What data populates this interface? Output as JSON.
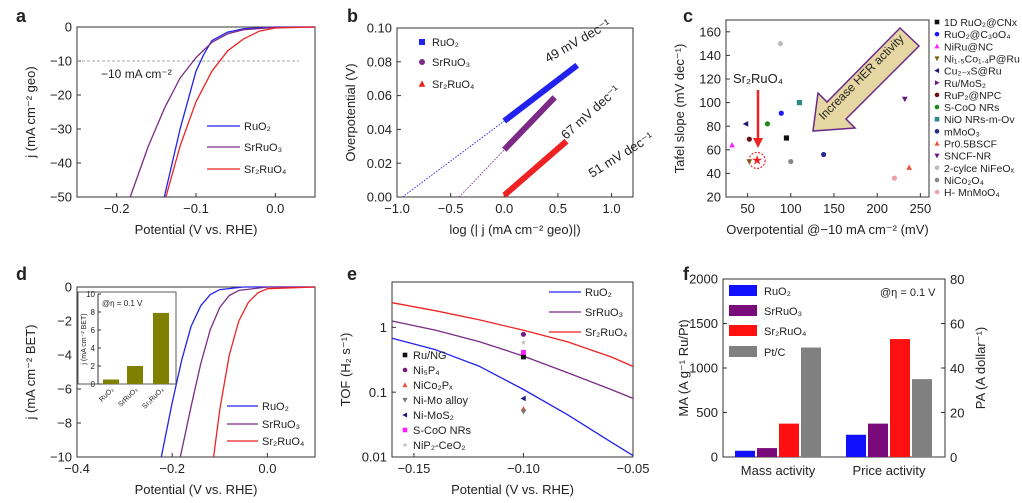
{
  "panel_labels": [
    "a",
    "b",
    "c",
    "d",
    "e",
    "f"
  ],
  "chart_data": [
    {
      "panel": "a",
      "type": "line",
      "xlabel": "Potential (V vs. RHE)",
      "ylabel": "j (mA cm⁻² geo)",
      "xlim": [
        -0.25,
        0.05
      ],
      "ylim": [
        -50,
        0
      ],
      "xticks": [
        -0.2,
        -0.1,
        0.0
      ],
      "xtick_labels": [
        "−0.2",
        "−0.1",
        "0.0"
      ],
      "yticks": [
        0,
        -10,
        -20,
        -30,
        -40,
        -50
      ],
      "ytick_labels": [
        "0",
        "−10",
        "−20",
        "−30",
        "−40",
        "−50"
      ],
      "legend": "bottom-right",
      "reference_line": {
        "y": -10,
        "label": "−10 mA cm⁻²"
      },
      "series": [
        {
          "name": "RuO₂",
          "color": "#2222ee",
          "x": [
            -0.14,
            -0.12,
            -0.1,
            -0.09,
            -0.08,
            -0.06,
            -0.04,
            0,
            0.05
          ],
          "y": [
            -50,
            -30,
            -13,
            -8,
            -4,
            -1.5,
            -0.5,
            0,
            0
          ]
        },
        {
          "name": "SrRuO₃",
          "color": "#7b2a86",
          "x": [
            -0.183,
            -0.16,
            -0.14,
            -0.12,
            -0.1,
            -0.08,
            -0.06,
            -0.04,
            0,
            0.05
          ],
          "y": [
            -50,
            -35,
            -24,
            -15,
            -9,
            -4.5,
            -2,
            -0.8,
            -0.1,
            0
          ]
        },
        {
          "name": "Sr₂RuO₄",
          "color": "#ee2222",
          "x": [
            -0.138,
            -0.12,
            -0.1,
            -0.08,
            -0.06,
            -0.04,
            -0.02,
            0,
            0.05
          ],
          "y": [
            -50,
            -35,
            -22,
            -13,
            -7,
            -3.5,
            -1.2,
            -0.3,
            0
          ]
        }
      ]
    },
    {
      "panel": "b",
      "type": "line",
      "xlabel": "log (| j (mA cm⁻² geo)|)",
      "ylabel": "Overpotential (V)",
      "xlim": [
        -1.0,
        1.2
      ],
      "ylim": [
        0,
        0.1
      ],
      "xticks": [
        -1.0,
        -0.5,
        0.0,
        0.5,
        1.0
      ],
      "xtick_labels": [
        "−1.0",
        "−0.5",
        "0.0",
        "0.5",
        "1.0"
      ],
      "yticks": [
        0,
        0.02,
        0.04,
        0.06,
        0.08,
        0.1
      ],
      "ytick_labels": [
        "0.00",
        "0.02",
        "0.04",
        "0.06",
        "0.08",
        "0.10"
      ],
      "legend": "top-left",
      "series": [
        {
          "name": "RuO₂",
          "color": "#2222ee",
          "marker": "square",
          "fit_x": [
            0,
            0.68
          ],
          "fit_y": [
            0.045,
            0.078
          ],
          "extrap_x": [
            -0.95,
            0
          ],
          "extrap_y": [
            0,
            0.045
          ],
          "slope_label": "49 mV dec⁻¹"
        },
        {
          "name": "SrRuO₃",
          "color": "#7b2a86",
          "marker": "circle",
          "fit_x": [
            0,
            0.47
          ],
          "fit_y": [
            0.028,
            0.059
          ],
          "extrap_x": [
            -0.42,
            0
          ],
          "extrap_y": [
            0,
            0.028
          ],
          "slope_label": "67 mV dec⁻¹"
        },
        {
          "name": "Sr₂RuO₄",
          "color": "#ee2222",
          "marker": "triangle-up",
          "fit_x": [
            0,
            0.58
          ],
          "fit_y": [
            0.001,
            0.033
          ],
          "extrap_x": [
            -0.03,
            0
          ],
          "extrap_y": [
            0,
            0.001
          ],
          "slope_label": "51 mV dec⁻¹"
        }
      ]
    },
    {
      "panel": "c",
      "type": "scatter",
      "xlabel": "Overpotential @−10 mA cm⁻² (mV)",
      "ylabel": "Tafel slope (mV dec⁻¹)",
      "xlim": [
        25,
        260
      ],
      "ylim": [
        20,
        170
      ],
      "xticks": [
        50,
        100,
        150,
        200,
        250
      ],
      "xtick_labels": [
        "50",
        "100",
        "150",
        "200",
        "250"
      ],
      "yticks": [
        20,
        40,
        60,
        80,
        100,
        120,
        140,
        160
      ],
      "ytick_labels": [
        "20",
        "40",
        "60",
        "80",
        "100",
        "120",
        "140",
        "160"
      ],
      "legend": "outside-right",
      "highlight": {
        "name": "Sr₂RuO₄",
        "x": 61,
        "y": 51,
        "color": "#ee2222",
        "marker": "star"
      },
      "annotation": "Increase HER activity",
      "points": [
        {
          "name": "1D RuO₂@CNx",
          "x": 95,
          "y": 70,
          "color": "#111111",
          "marker": "square"
        },
        {
          "name": "RuO₂@C₃oO₄",
          "x": 89,
          "y": 91,
          "color": "#1a1aff",
          "marker": "circle"
        },
        {
          "name": "NiRu@NC",
          "x": 32,
          "y": 64,
          "color": "#ff22ff",
          "marker": "triangle-up"
        },
        {
          "name": "Ni₁.₅Co₁.₄P@Ru",
          "x": 52,
          "y": 50,
          "color": "#6b6b10",
          "marker": "triangle-down"
        },
        {
          "name": "Cu₂₋ₓS@Ru",
          "x": 48,
          "y": 82,
          "color": "#1a1a70",
          "marker": "triangle-left"
        },
        {
          "name": "Ru/MoS₂",
          "x": null,
          "y": null,
          "color": "#6a1a80",
          "marker": "triangle-right"
        },
        {
          "name": "RuP₂@NPC",
          "x": 52,
          "y": 69,
          "color": "#6a1010",
          "marker": "circle"
        },
        {
          "name": "S-CoO NRs",
          "x": 73,
          "y": 82,
          "color": "#1a8a1a",
          "marker": "circle"
        },
        {
          "name": "NiO NRs-m-Ov",
          "x": 110,
          "y": 100,
          "color": "#2a8a8a",
          "marker": "square"
        },
        {
          "name": "mMoO₃",
          "x": 138,
          "y": 56,
          "color": "#2a2a90",
          "marker": "circle"
        },
        {
          "name": "Pr0.5BSCF",
          "x": 237,
          "y": 45,
          "color": "#ee5533",
          "marker": "triangle-up"
        },
        {
          "name": "SNCF-NR",
          "x": 232,
          "y": 103,
          "color": "#6a1a80",
          "marker": "triangle-down"
        },
        {
          "name": "2-cylce NiFeOₓ",
          "x": 88,
          "y": 150,
          "color": "#bbbbbb",
          "marker": "circle"
        },
        {
          "name": "NiCo₂O₄",
          "x": 100,
          "y": 50,
          "color": "#888888",
          "marker": "circle"
        },
        {
          "name": "H- MnMoO₄",
          "x": 220,
          "y": 36,
          "color": "#f0a0a8",
          "marker": "circle"
        }
      ]
    },
    {
      "panel": "d",
      "type": "line",
      "xlabel": "Potential (V vs. RHE)",
      "ylabel": "j (mA cm⁻² BET)",
      "xlim": [
        -0.4,
        0.1
      ],
      "ylim": [
        -10,
        0
      ],
      "xticks": [
        -0.4,
        -0.2,
        0.0
      ],
      "xtick_labels": [
        "−0.4",
        "−0.2",
        "0.0"
      ],
      "yticks": [
        0,
        -2,
        -4,
        -6,
        -8,
        -10
      ],
      "ytick_labels": [
        "0",
        "−2",
        "−4",
        "−6",
        "−8",
        "−10"
      ],
      "legend": "bottom-right",
      "series": [
        {
          "name": "RuO₂",
          "color": "#2222ee",
          "x": [
            -0.223,
            -0.2,
            -0.18,
            -0.16,
            -0.14,
            -0.12,
            -0.1,
            -0.05,
            0.1
          ],
          "y": [
            -10,
            -6.8,
            -4.3,
            -2.3,
            -1.1,
            -0.45,
            -0.15,
            0,
            0
          ]
        },
        {
          "name": "SrRuO₃",
          "color": "#7b2a86",
          "x": [
            -0.183,
            -0.16,
            -0.14,
            -0.12,
            -0.1,
            -0.08,
            -0.06,
            0,
            0.1
          ],
          "y": [
            -10,
            -7,
            -4.5,
            -2.5,
            -1.2,
            -0.5,
            -0.2,
            0,
            0
          ]
        },
        {
          "name": "Sr₂RuO₄",
          "color": "#ee2222",
          "x": [
            -0.113,
            -0.1,
            -0.08,
            -0.06,
            -0.04,
            -0.02,
            0,
            0.1
          ],
          "y": [
            -10,
            -7.2,
            -4,
            -2,
            -0.9,
            -0.35,
            -0.1,
            0
          ]
        }
      ]
    },
    {
      "panel": "d-inset",
      "type": "bar",
      "ylabel": "j (mA cm⁻² BET)",
      "annotation": "@η = 0.1 V",
      "categories": [
        "RuO₂",
        "SrRuO₃",
        "Sr₂RuO₄"
      ],
      "values": [
        0.5,
        2.0,
        7.9
      ],
      "ylim": [
        0,
        10
      ],
      "yticks": [
        0,
        2,
        4,
        6,
        8,
        10
      ],
      "ytick_labels": [
        "0",
        "2",
        "4",
        "6",
        "8",
        "10"
      ],
      "color": "#7f7f00"
    },
    {
      "panel": "e",
      "type": "line",
      "yscale": "log",
      "xlabel": "Potential (V vs. RHE)",
      "ylabel": "TOF (H₂ s⁻¹)",
      "xlim": [
        -0.16,
        -0.05
      ],
      "ylim": [
        0.01,
        5
      ],
      "xticks": [
        -0.15,
        -0.1,
        -0.05
      ],
      "xtick_labels": [
        "−0.15",
        "−0.10",
        "−0.05"
      ],
      "yticks": [
        0.01,
        0.1,
        1
      ],
      "ytick_labels": [
        "0.01",
        "0.1",
        "1"
      ],
      "legend": "top-right",
      "series": [
        {
          "name": "RuO₂",
          "color": "#2222ee",
          "x": [
            -0.16,
            -0.14,
            -0.12,
            -0.1,
            -0.08,
            -0.06,
            -0.05
          ],
          "y": [
            0.68,
            0.45,
            0.25,
            0.11,
            0.045,
            0.017,
            0.0105
          ]
        },
        {
          "name": "SrRuO₃",
          "color": "#7b2a86",
          "x": [
            -0.16,
            -0.14,
            -0.12,
            -0.1,
            -0.08,
            -0.06,
            -0.05
          ],
          "y": [
            1.25,
            0.9,
            0.6,
            0.36,
            0.2,
            0.11,
            0.08
          ]
        },
        {
          "name": "Sr₂RuO₄",
          "color": "#ee2222",
          "x": [
            -0.16,
            -0.14,
            -0.12,
            -0.1,
            -0.08,
            -0.06,
            -0.05
          ],
          "y": [
            2.4,
            1.8,
            1.3,
            0.9,
            0.6,
            0.35,
            0.25
          ]
        }
      ],
      "points": [
        {
          "name": "Ru/NG",
          "x": -0.1,
          "y": 0.35,
          "color": "#111111",
          "marker": "square"
        },
        {
          "name": "Ni₅P₄",
          "x": -0.1,
          "y": 0.78,
          "color": "#7a1a80",
          "marker": "circle"
        },
        {
          "name": "NiCo₂Pₓ",
          "x": -0.1,
          "y": 0.055,
          "color": "#ee5533",
          "marker": "triangle-up"
        },
        {
          "name": "Ni-Mo alloy",
          "x": -0.1,
          "y": 0.05,
          "color": "#777777",
          "marker": "triangle-down"
        },
        {
          "name": "Ni-MoS₂",
          "x": -0.1,
          "y": 0.08,
          "color": "#1a1a80",
          "marker": "triangle-left"
        },
        {
          "name": "S-CoO NRs",
          "x": -0.1,
          "y": 0.41,
          "color": "#ff22ff",
          "marker": "square"
        },
        {
          "name": "NiP₂-CeO₂",
          "x": -0.1,
          "y": 0.58,
          "color": "#bbbbbb",
          "marker": "star"
        }
      ]
    },
    {
      "panel": "f",
      "type": "bar",
      "ylabel": "MA (A g⁻¹ Ru/Pt)",
      "y2label": "PA (A dollar⁻¹)",
      "annotation": "@η = 0.1 V",
      "categories": [
        "Mass activity",
        "Price activity"
      ],
      "ylim": [
        0,
        2000
      ],
      "yticks": [
        0,
        500,
        1000,
        1500,
        2000
      ],
      "ytick_labels": [
        "0",
        "500",
        "1000",
        "1500",
        "2000"
      ],
      "y2lim": [
        0,
        80
      ],
      "y2ticks": [
        0,
        20,
        40,
        60,
        80
      ],
      "y2tick_labels": [
        "0",
        "20",
        "40",
        "60",
        "80"
      ],
      "legend": "top-left",
      "series": [
        {
          "name": "RuO₂",
          "color": "#1010ff",
          "mass_activity": 70,
          "price_activity": 10
        },
        {
          "name": "SrRuO₃",
          "color": "#7a0a7a",
          "mass_activity": 100,
          "price_activity": 15
        },
        {
          "name": "Sr₂RuO₄",
          "color": "#ff1010",
          "mass_activity": 375,
          "price_activity": 53
        },
        {
          "name": "Pt/C",
          "color": "#808080",
          "mass_activity": 1230,
          "price_activity": 35
        }
      ]
    }
  ]
}
